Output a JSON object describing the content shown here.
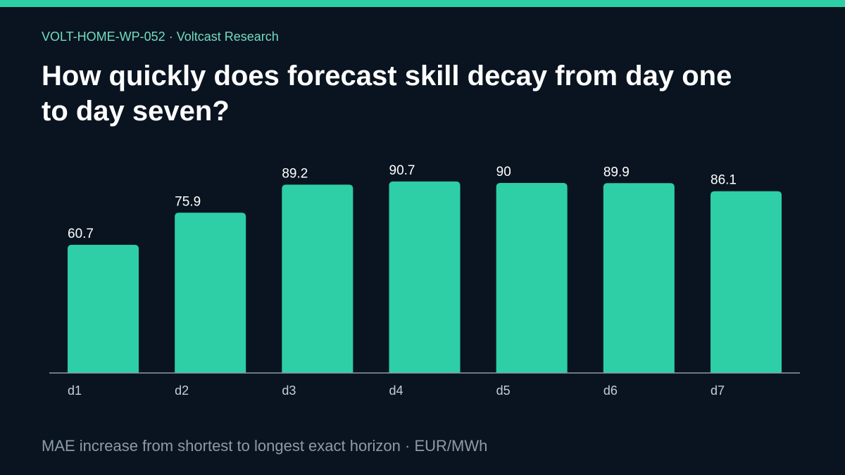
{
  "header": {
    "meta": "VOLT-HOME-WP-052 · Voltcast Research",
    "title": "How quickly does forecast skill decay from day one to day seven?"
  },
  "footer": {
    "caption": "MAE increase from shortest to longest exact horizon · EUR/MWh"
  },
  "colors": {
    "background": "#0a1420",
    "accent": "#2ecfa6",
    "bar": "#2ecfa6",
    "text": "#ffffff",
    "muted": "#8d9aab",
    "axis": "#8d9aab"
  },
  "chart_data": {
    "type": "bar",
    "categories": [
      "d1",
      "d2",
      "d3",
      "d4",
      "d5",
      "d6",
      "d7"
    ],
    "values": [
      60.7,
      75.9,
      89.2,
      90.7,
      90,
      89.9,
      86.1
    ],
    "value_labels": [
      "60.7",
      "75.9",
      "89.2",
      "90.7",
      "90",
      "89.9",
      "86.1"
    ],
    "xlabel": "",
    "ylabel": "",
    "ylim": [
      0,
      100
    ],
    "grid": false,
    "legend": "none"
  }
}
